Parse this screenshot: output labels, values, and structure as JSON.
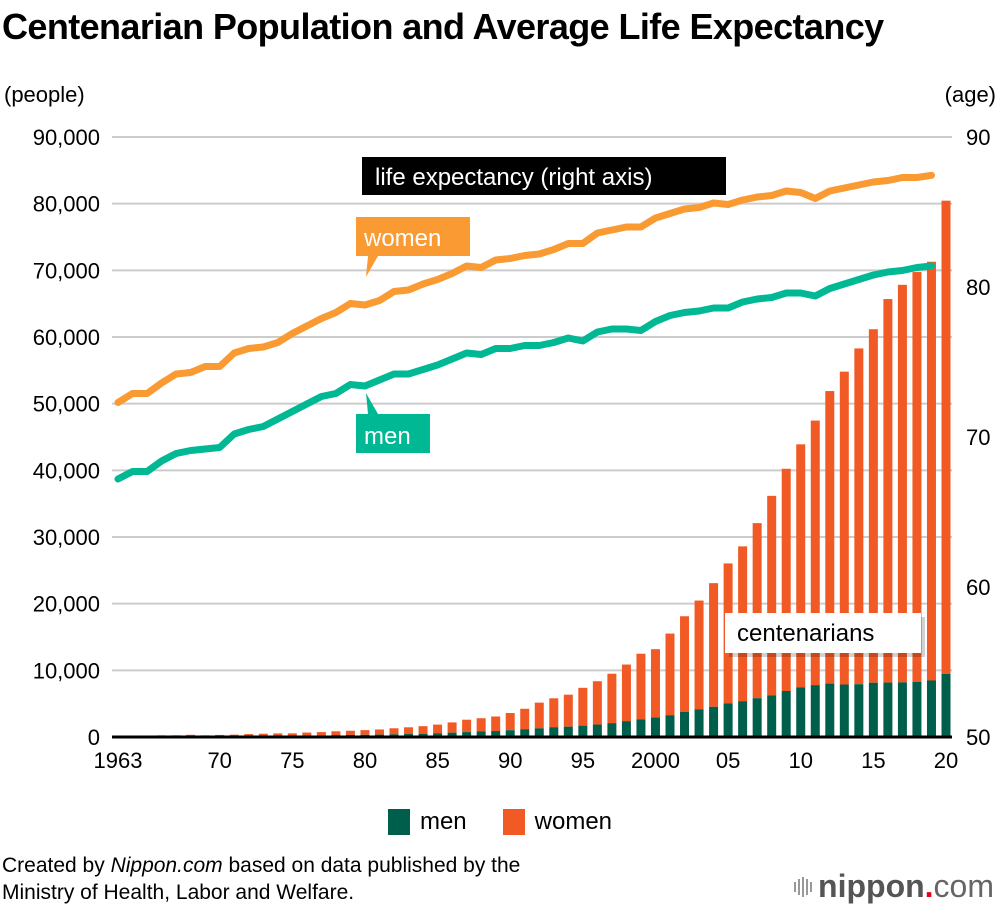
{
  "title": "Centenarian Population and Average Life Expectancy",
  "left_unit": "(people)",
  "right_unit": "(age)",
  "annotations": {
    "life_expectancy_box": "life expectancy (right axis)",
    "women_label": "women",
    "men_label": "men",
    "centenarians_label": "centenarians"
  },
  "legend": {
    "men": "men",
    "women": "women"
  },
  "colors": {
    "men_bar": "#005f4b",
    "women_bar": "#f15a24",
    "women_line": "#fa9a32",
    "men_line": "#00b894",
    "grid": "#cccccc",
    "label_box_dark": "#000000"
  },
  "footer": {
    "prefix": "Created by ",
    "source_italic": "Nippon.com",
    "suffix": " based on data published by the",
    "line2": "Ministry of Health, Labor and Welfare."
  },
  "logo": {
    "name": "nippon",
    "dot": ".",
    "tld": "com"
  },
  "chart_data": {
    "type": "bar+line",
    "title": "Centenarian Population and Average Life Expectancy",
    "xlabel": "",
    "ylabel_left": "(people)",
    "ylabel_right": "(age)",
    "ylim_left": [
      0,
      90000
    ],
    "ylim_right": [
      50,
      90
    ],
    "left_ticks": [
      "0",
      "10,000",
      "20,000",
      "30,000",
      "40,000",
      "50,000",
      "60,000",
      "70,000",
      "80,000",
      "90,000"
    ],
    "right_ticks": [
      "50",
      "60",
      "70",
      "80",
      "90"
    ],
    "x_tick_labels": [
      {
        "year": 1963,
        "label": "1963"
      },
      {
        "year": 1970,
        "label": "70"
      },
      {
        "year": 1975,
        "label": "75"
      },
      {
        "year": 1980,
        "label": "80"
      },
      {
        "year": 1985,
        "label": "85"
      },
      {
        "year": 1990,
        "label": "90"
      },
      {
        "year": 1995,
        "label": "95"
      },
      {
        "year": 2000,
        "label": "2000"
      },
      {
        "year": 2005,
        "label": "05"
      },
      {
        "year": 2010,
        "label": "10"
      },
      {
        "year": 2015,
        "label": "15"
      },
      {
        "year": 2020,
        "label": "20"
      }
    ],
    "grid": true,
    "legend_position": "bottom-center",
    "years": [
      1963,
      1964,
      1965,
      1966,
      1967,
      1968,
      1969,
      1970,
      1971,
      1972,
      1973,
      1974,
      1975,
      1976,
      1977,
      1978,
      1979,
      1980,
      1981,
      1982,
      1983,
      1984,
      1985,
      1986,
      1987,
      1988,
      1989,
      1990,
      1991,
      1992,
      1993,
      1994,
      1995,
      1996,
      1997,
      1998,
      1999,
      2000,
      2001,
      2002,
      2003,
      2004,
      2005,
      2006,
      2007,
      2008,
      2009,
      2010,
      2011,
      2012,
      2013,
      2014,
      2015,
      2016,
      2017,
      2018,
      2019,
      2020
    ],
    "bar_series": [
      {
        "name": "men",
        "stack": "centenarians",
        "values": [
          20,
          31,
          36,
          45,
          51,
          60,
          77,
          93,
          105,
          137,
          155,
          167,
          174,
          202,
          252,
          287,
          311,
          327,
          355,
          402,
          443,
          492,
          562,
          649,
          738,
          826,
          895,
          1017,
          1172,
          1293,
          1473,
          1546,
          1702,
          1868,
          2084,
          2383,
          2635,
          2917,
          3274,
          3750,
          4167,
          4532,
          5029,
          5376,
          5823,
          6246,
          6902,
          7452,
          7785,
          8010,
          7873,
          7919,
          8140,
          8167,
          8198,
          8288,
          8476,
          9475
        ]
      },
      {
        "name": "women",
        "stack": "centenarians",
        "values": [
          133,
          160,
          162,
          207,
          203,
          267,
          175,
          217,
          244,
          297,
          340,
          372,
          374,
          464,
          482,
          571,
          626,
          705,
          777,
          907,
          1011,
          1135,
          1297,
          1537,
          1856,
          1992,
          2183,
          2580,
          3062,
          3860,
          4330,
          4803,
          5676,
          6498,
          7407,
          8486,
          9856,
          10256,
          12242,
          14361,
          16299,
          18545,
          21007,
          23219,
          26259,
          29928,
          33331,
          36449,
          39679,
          43882,
          46929,
          50366,
          53026,
          57525,
          59627,
          61454,
          62810,
          70975
        ]
      }
    ],
    "line_series": [
      {
        "name": "women (life expectancy, right axis)",
        "axis": "right",
        "years_range": [
          1963,
          2019
        ],
        "values": [
          72.3,
          72.9,
          72.9,
          73.6,
          74.2,
          74.3,
          74.7,
          74.7,
          75.6,
          75.9,
          76.0,
          76.3,
          76.9,
          77.4,
          77.9,
          78.3,
          78.9,
          78.8,
          79.1,
          79.7,
          79.8,
          80.2,
          80.5,
          80.9,
          81.4,
          81.3,
          81.8,
          81.9,
          82.1,
          82.2,
          82.5,
          82.9,
          82.9,
          83.6,
          83.8,
          84.0,
          84.0,
          84.6,
          84.9,
          85.2,
          85.3,
          85.6,
          85.5,
          85.8,
          86.0,
          86.1,
          86.4,
          86.3,
          85.9,
          86.4,
          86.6,
          86.8,
          87.0,
          87.1,
          87.3,
          87.3,
          87.45
        ]
      },
      {
        "name": "men (life expectancy, right axis)",
        "axis": "right",
        "years_range": [
          1963,
          2019
        ],
        "values": [
          67.2,
          67.7,
          67.7,
          68.4,
          68.9,
          69.1,
          69.2,
          69.3,
          70.2,
          70.5,
          70.7,
          71.2,
          71.7,
          72.2,
          72.7,
          72.9,
          73.5,
          73.4,
          73.8,
          74.2,
          74.2,
          74.5,
          74.8,
          75.2,
          75.6,
          75.5,
          75.9,
          75.9,
          76.1,
          76.1,
          76.3,
          76.6,
          76.4,
          77.0,
          77.2,
          77.2,
          77.1,
          77.7,
          78.1,
          78.3,
          78.4,
          78.6,
          78.6,
          79.0,
          79.2,
          79.3,
          79.6,
          79.6,
          79.4,
          79.9,
          80.2,
          80.5,
          80.8,
          81.0,
          81.1,
          81.3,
          81.4
        ]
      }
    ]
  }
}
